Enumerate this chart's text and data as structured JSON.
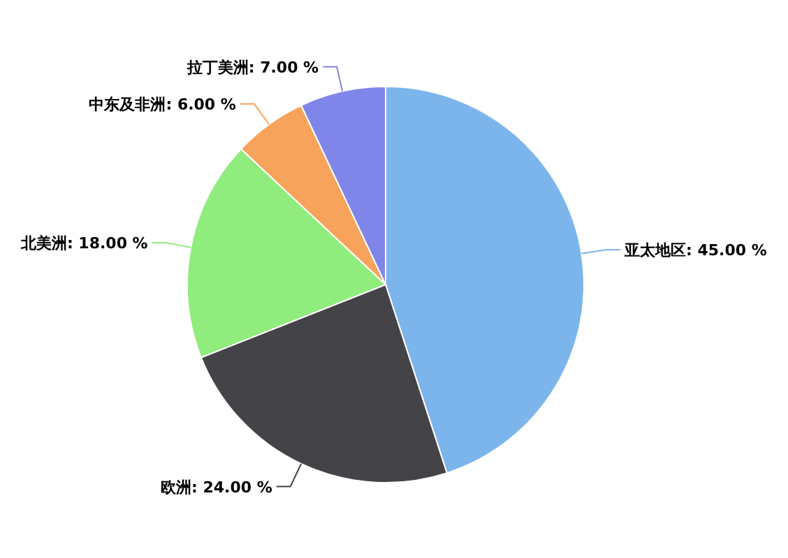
{
  "chart_data": {
    "type": "pie",
    "categories": [
      "亚太地区",
      "欧洲",
      "北美洲",
      "中东及非洲",
      "拉丁美洲"
    ],
    "values": [
      45,
      24,
      18,
      6,
      7
    ],
    "value_labels": [
      "45.00 %",
      "24.00 %",
      "18.00 %",
      "6.00 %",
      "7.00 %"
    ],
    "colors": [
      "#7cb5ec",
      "#434348",
      "#90ed7d",
      "#f7a35c",
      "#8085e9"
    ],
    "legend": false
  }
}
